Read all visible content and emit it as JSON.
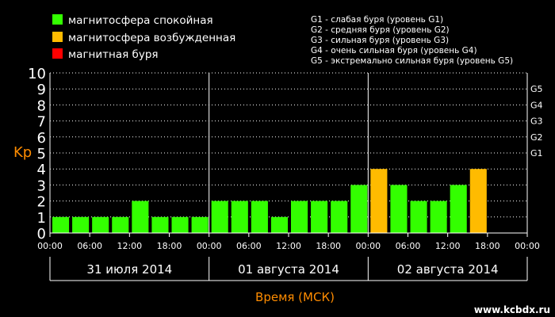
{
  "legend": [
    {
      "label": "магнитосфера спокойная",
      "color": "#33ff00"
    },
    {
      "label": "магнитосфера возбужденная",
      "color": "#ffbb00"
    },
    {
      "label": "магнитная буря",
      "color": "#ff0000"
    }
  ],
  "storm_levels": [
    "G1 - слабая буря (уровень G1)",
    "G2 - средняя буря (уровень G2)",
    "G3 - сильная буря (уровень G3)",
    "G4 - очень сильная буря (уровень G4)",
    "G5 - экстремально сильная буря (уровень G5)"
  ],
  "watermark": "www.kcbdx.ru",
  "chart_data": {
    "type": "bar",
    "ylabel": "Kp",
    "xlabel": "Время (МСК)",
    "ylim": [
      0,
      10
    ],
    "y_ticks": [
      "0",
      "1",
      "2",
      "3",
      "4",
      "5",
      "6",
      "7",
      "8",
      "9",
      "10"
    ],
    "right_ticks": [
      {
        "label": "G1",
        "value": 5
      },
      {
        "label": "G2",
        "value": 6
      },
      {
        "label": "G3",
        "value": 7
      },
      {
        "label": "G4",
        "value": 8
      },
      {
        "label": "G5",
        "value": 9
      }
    ],
    "grid": true,
    "x_tick_labels": [
      "00:00",
      "06:00",
      "12:00",
      "18:00",
      "00:00",
      "06:00",
      "12:00",
      "18:00",
      "00:00",
      "06:00",
      "12:00",
      "18:00",
      "00:00"
    ],
    "days": [
      "31 июля 2014",
      "01 августа 2014",
      "02 августа 2014"
    ],
    "interval_hours": 3,
    "values": [
      1,
      1,
      1,
      1,
      2,
      1,
      1,
      1,
      2,
      2,
      2,
      1,
      2,
      2,
      2,
      3,
      4,
      3,
      2,
      2,
      3,
      4
    ],
    "colors": {
      "quiet": "#33ff00",
      "active": "#ffbb00",
      "storm": "#ff0000"
    }
  }
}
